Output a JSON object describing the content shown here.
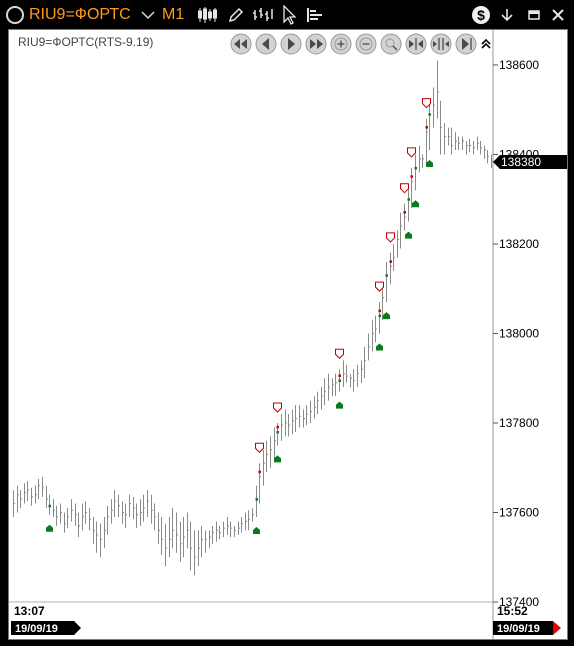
{
  "titlebar": {
    "symbol": "RIU9=ФОРТС",
    "timeframe": "M1",
    "icons": [
      "app-logo-icon",
      "chevron-down-icon",
      "candlestick-icon",
      "pencil-icon",
      "bar-chart-icon",
      "cursor-icon",
      "bars-icon",
      "dollar-icon",
      "download-arrow-icon",
      "minimize-icon",
      "close-icon"
    ]
  },
  "chart_label": "RIU9=ФОРТС(RTS-9.19)",
  "nav_icons": [
    "double-left-icon",
    "left-icon",
    "right-icon",
    "double-right-icon",
    "zoom-in-icon",
    "zoom-out-icon",
    "magnify-icon",
    "fit-horizontal-icon",
    "expand-horizontal-icon",
    "jump-end-icon",
    "collapse-up-icon"
  ],
  "chart_data": {
    "type": "bar",
    "price_axis": {
      "ylim": [
        137400,
        138620
      ],
      "ticks": [
        "138600",
        "138400",
        "138200",
        "138000",
        "137800",
        "137600",
        "137400"
      ]
    },
    "current_price": "138380",
    "time_start": {
      "time": "13:07",
      "date": "19/09/19"
    },
    "time_end": {
      "time": "15:52",
      "date": "19/09/19"
    },
    "series": [
      {
        "values": [
          [
            137650,
            137590,
            137620
          ],
          [
            137660,
            137600,
            137640
          ],
          [
            137650,
            137610,
            137630
          ],
          [
            137665,
            137620,
            137645
          ],
          [
            137670,
            137625,
            137650
          ],
          [
            137655,
            137615,
            137635
          ],
          [
            137660,
            137620,
            137640
          ],
          [
            137675,
            137630,
            137660
          ],
          [
            137680,
            137635,
            137655
          ],
          [
            137660,
            137610,
            137630
          ],
          [
            137640,
            137595,
            137615
          ],
          [
            137630,
            137590,
            137605
          ],
          [
            137615,
            137570,
            137590
          ],
          [
            137620,
            137575,
            137600
          ],
          [
            137600,
            137555,
            137575
          ],
          [
            137610,
            137565,
            137590
          ],
          [
            137630,
            137580,
            137605
          ],
          [
            137620,
            137570,
            137595
          ],
          [
            137600,
            137545,
            137570
          ],
          [
            137620,
            137560,
            137590
          ],
          [
            137625,
            137575,
            137600
          ],
          [
            137610,
            137560,
            137585
          ],
          [
            137590,
            137530,
            137560
          ],
          [
            137580,
            137510,
            137550
          ],
          [
            137575,
            137500,
            137540
          ],
          [
            137590,
            137520,
            137560
          ],
          [
            137615,
            137550,
            137590
          ],
          [
            137630,
            137575,
            137605
          ],
          [
            137650,
            137590,
            137625
          ],
          [
            137640,
            137590,
            137615
          ],
          [
            137625,
            137575,
            137600
          ],
          [
            137620,
            137565,
            137595
          ],
          [
            137640,
            137590,
            137620
          ],
          [
            137635,
            137585,
            137610
          ],
          [
            137620,
            137565,
            137595
          ],
          [
            137630,
            137570,
            137600
          ],
          [
            137640,
            137580,
            137610
          ],
          [
            137650,
            137590,
            137625
          ],
          [
            137640,
            137575,
            137605
          ],
          [
            137620,
            137560,
            137590
          ],
          [
            137600,
            137530,
            137560
          ],
          [
            137590,
            137505,
            137540
          ],
          [
            137575,
            137480,
            137520
          ],
          [
            137590,
            137500,
            137540
          ],
          [
            137610,
            137520,
            137560
          ],
          [
            137600,
            137510,
            137550
          ],
          [
            137580,
            137490,
            137530
          ],
          [
            137590,
            137500,
            137545
          ],
          [
            137600,
            137520,
            137560
          ],
          [
            137580,
            137470,
            137520
          ],
          [
            137560,
            137460,
            137500
          ],
          [
            137560,
            137480,
            137520
          ],
          [
            137570,
            137500,
            137540
          ],
          [
            137560,
            137510,
            137540
          ],
          [
            137560,
            137520,
            137545
          ],
          [
            137570,
            137530,
            137555
          ],
          [
            137580,
            137535,
            137560
          ],
          [
            137570,
            137540,
            137555
          ],
          [
            137580,
            137545,
            137565
          ],
          [
            137590,
            137550,
            137570
          ],
          [
            137580,
            137545,
            137565
          ],
          [
            137570,
            137545,
            137560
          ],
          [
            137580,
            137550,
            137565
          ],
          [
            137590,
            137555,
            137575
          ],
          [
            137600,
            137560,
            137580
          ],
          [
            137605,
            137560,
            137585
          ],
          [
            137610,
            137580,
            137595
          ],
          [
            137660,
            137590,
            137630
          ],
          [
            137710,
            137620,
            137680
          ],
          [
            137740,
            137660,
            137710
          ],
          [
            137760,
            137690,
            137730
          ],
          [
            137770,
            137700,
            137740
          ],
          [
            137790,
            137720,
            137760
          ],
          [
            137800,
            137750,
            137780
          ],
          [
            137820,
            137760,
            137795
          ],
          [
            137830,
            137770,
            137800
          ],
          [
            137820,
            137770,
            137795
          ],
          [
            137830,
            137775,
            137805
          ],
          [
            137840,
            137780,
            137810
          ],
          [
            137840,
            137790,
            137815
          ],
          [
            137830,
            137790,
            137810
          ],
          [
            137840,
            137795,
            137820
          ],
          [
            137850,
            137800,
            137825
          ],
          [
            137860,
            137810,
            137835
          ],
          [
            137870,
            137820,
            137850
          ],
          [
            137880,
            137830,
            137860
          ],
          [
            137900,
            137840,
            137870
          ],
          [
            137910,
            137850,
            137880
          ],
          [
            137900,
            137860,
            137885
          ],
          [
            137910,
            137860,
            137890
          ],
          [
            137920,
            137870,
            137895
          ],
          [
            137940,
            137880,
            137910
          ],
          [
            137930,
            137890,
            137905
          ],
          [
            137910,
            137880,
            137900
          ],
          [
            137920,
            137870,
            137895
          ],
          [
            137930,
            137880,
            137910
          ],
          [
            137940,
            137890,
            137920
          ],
          [
            137970,
            137900,
            137940
          ],
          [
            138000,
            137940,
            137970
          ],
          [
            138030,
            137960,
            138000
          ],
          [
            138040,
            137980,
            138010
          ],
          [
            138070,
            138000,
            138040
          ],
          [
            138110,
            138030,
            138080
          ],
          [
            138160,
            138070,
            138130
          ],
          [
            138180,
            138110,
            138150
          ],
          [
            138200,
            138140,
            138170
          ],
          [
            138230,
            138170,
            138210
          ],
          [
            138270,
            138190,
            138240
          ],
          [
            138290,
            138230,
            138260
          ],
          [
            138330,
            138250,
            138300
          ],
          [
            138370,
            138280,
            138340
          ],
          [
            138400,
            138320,
            138370
          ],
          [
            138420,
            138360,
            138390
          ],
          [
            138400,
            138370,
            138390
          ],
          [
            138480,
            138380,
            138450
          ],
          [
            138520,
            138410,
            138490
          ],
          [
            138550,
            138460,
            138510
          ],
          [
            138610,
            138480,
            138540
          ],
          [
            138520,
            138400,
            138460
          ],
          [
            138470,
            138400,
            138440
          ],
          [
            138460,
            138420,
            138440
          ],
          [
            138460,
            138400,
            138420
          ],
          [
            138450,
            138410,
            138430
          ],
          [
            138440,
            138410,
            138425
          ],
          [
            138440,
            138410,
            138430
          ],
          [
            138430,
            138400,
            138420
          ],
          [
            138435,
            138405,
            138420
          ],
          [
            138430,
            138400,
            138415
          ],
          [
            138440,
            138410,
            138425
          ],
          [
            138430,
            138400,
            138415
          ],
          [
            138420,
            138390,
            138410
          ],
          [
            138410,
            138380,
            138395
          ],
          [
            138400,
            138370,
            138385
          ]
        ]
      }
    ]
  }
}
